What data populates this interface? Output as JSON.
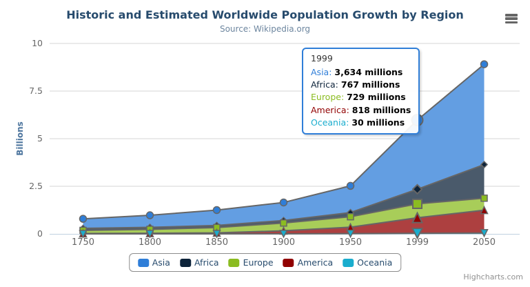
{
  "header": {
    "title": "Historic and Estimated Worldwide Population Growth by Region",
    "subtitle": "Source: Wikipedia.org"
  },
  "chart_data": {
    "type": "area",
    "stacking": "normal",
    "title": "Historic and Estimated Worldwide Population Growth by Region",
    "subtitle": "Source: Wikipedia.org",
    "categories": [
      "1750",
      "1800",
      "1850",
      "1900",
      "1950",
      "1999",
      "2050"
    ],
    "series": [
      {
        "name": "Asia",
        "color": "#2f7ed8",
        "marker_symbol": "circle",
        "values_millions": [
          502,
          635,
          809,
          947,
          1402,
          3634,
          5268
        ]
      },
      {
        "name": "Africa",
        "color": "#0d233a",
        "marker_symbol": "diamond",
        "values_millions": [
          106,
          107,
          111,
          133,
          221,
          767,
          1766
        ]
      },
      {
        "name": "Europe",
        "color": "#8bbc21",
        "marker_symbol": "square",
        "values_millions": [
          163,
          203,
          276,
          408,
          547,
          729,
          628
        ]
      },
      {
        "name": "America",
        "color": "#910000",
        "marker_symbol": "triangle",
        "values_millions": [
          18,
          31,
          54,
          156,
          339,
          818,
          1201
        ]
      },
      {
        "name": "Oceania",
        "color": "#1aadce",
        "marker_symbol": "triangle-down",
        "values_millions": [
          2,
          2,
          2,
          6,
          13,
          30,
          46
        ]
      }
    ],
    "xlabel": "",
    "ylabel": "Billions",
    "ylim": [
      0,
      10
    ],
    "yticks": [
      0,
      2.5,
      5,
      7.5,
      10
    ],
    "grid": "horizontal-only",
    "legend_position": "bottom-center",
    "units": "millions",
    "hover_category": "1999",
    "hover_category_index": 5
  },
  "tooltip": {
    "header": "1999",
    "border_color": "#2f7ed8",
    "rows": [
      {
        "label": "Asia",
        "value": "3,634 millions",
        "color": "#2f7ed8"
      },
      {
        "label": "Africa",
        "value": "767 millions",
        "color": "#0d233a"
      },
      {
        "label": "Europe",
        "value": "729 millions",
        "color": "#8bbc21"
      },
      {
        "label": "America",
        "value": "818 millions",
        "color": "#910000"
      },
      {
        "label": "Oceania",
        "value": "30 millions",
        "color": "#1aadce"
      }
    ]
  },
  "toolbar": {
    "export_icon": "hamburger-icon"
  },
  "footer": {
    "credits": "Highcharts.com"
  },
  "colors": {
    "title_text": "#274b6d",
    "subtitle_text": "#6D869F",
    "y_axis_title_text": "#4d759e",
    "axis_label_text": "#666666",
    "legend_text": "#274b6d",
    "grid_line": "#d6d6d6",
    "axis_line": "#c0d0e0",
    "series_outline": "#666666",
    "fill_opacity": 0.75,
    "credits_text": "#909090",
    "icon": "#666666"
  }
}
